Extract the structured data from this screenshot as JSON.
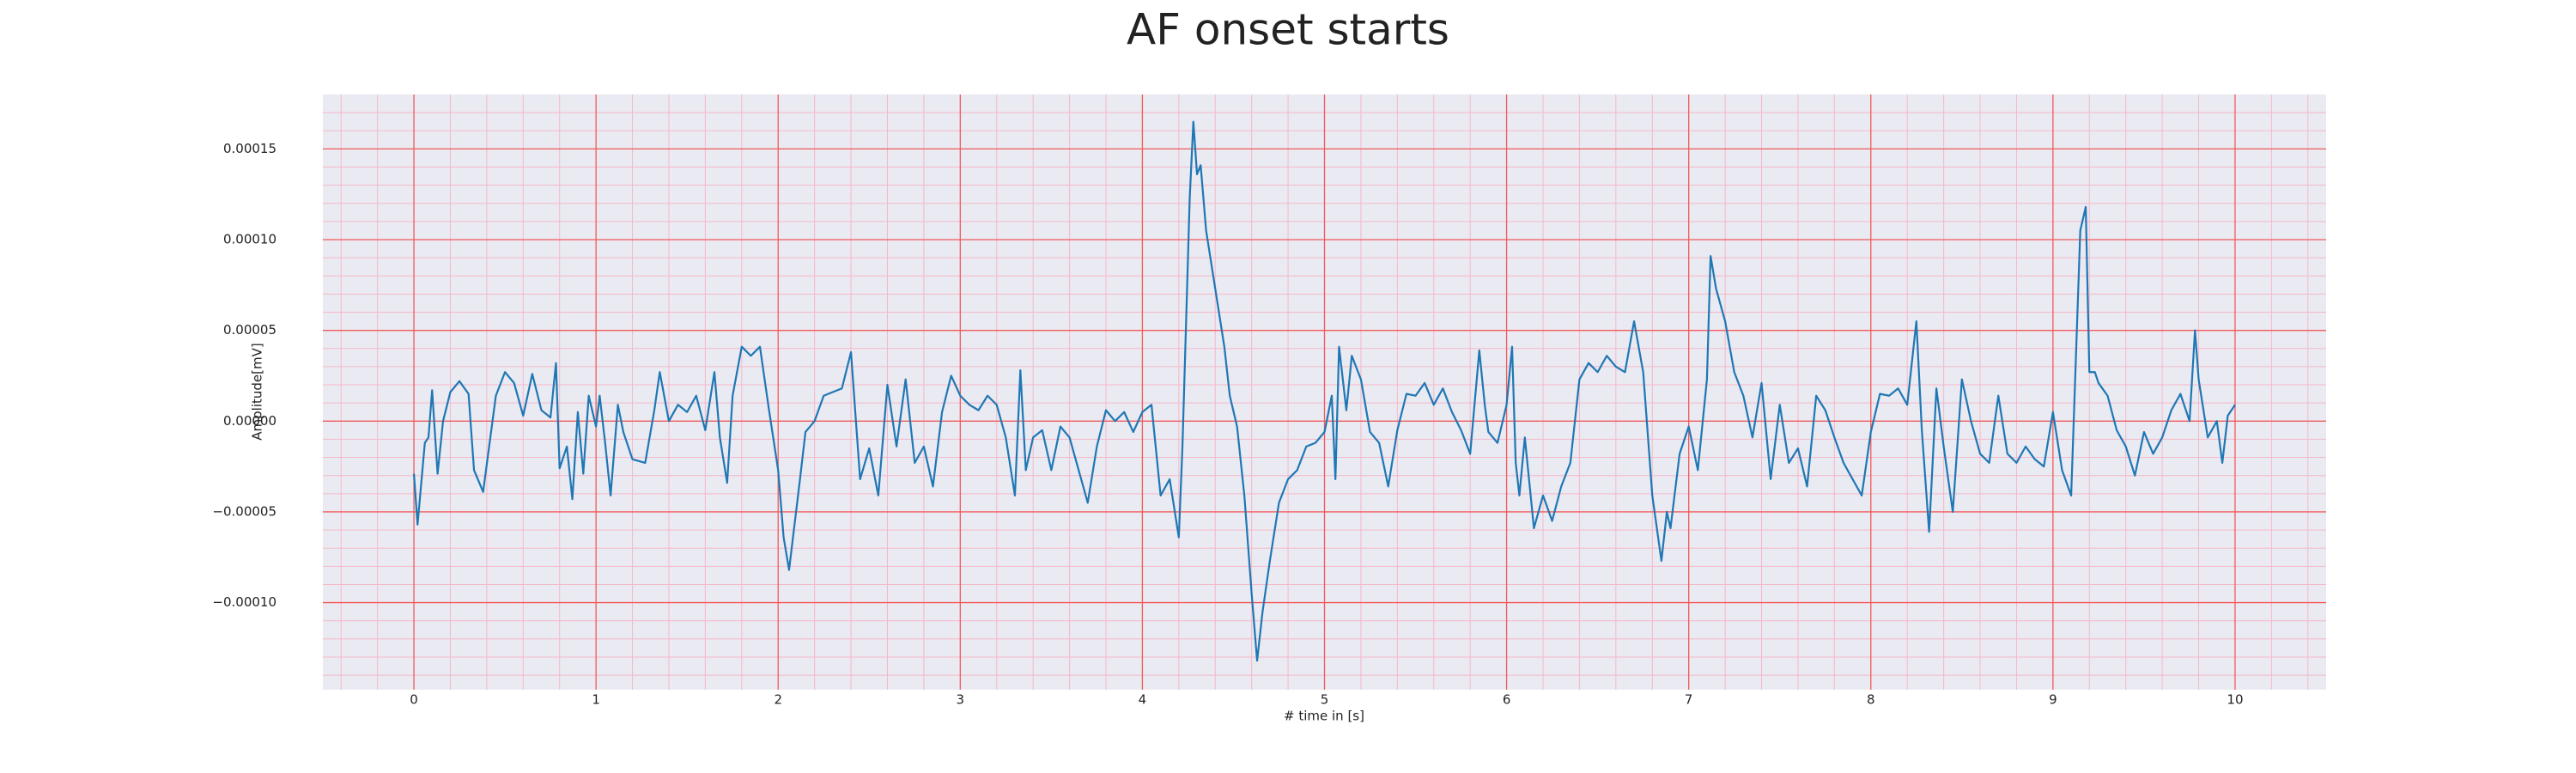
{
  "chart_data": {
    "type": "line",
    "title": "AF onset starts",
    "xlabel": "# time in [s]",
    "ylabel": "Amplitude[mV]",
    "x": [
      0,
      0.02,
      0.06,
      0.08,
      0.1,
      0.13,
      0.16,
      0.2,
      0.25,
      0.3,
      0.33,
      0.38,
      0.45,
      0.5,
      0.55,
      0.6,
      0.65,
      0.7,
      0.75,
      0.78,
      0.8,
      0.84,
      0.87,
      0.9,
      0.93,
      0.96,
      1.0,
      1.02,
      1.05,
      1.08,
      1.12,
      1.15,
      1.2,
      1.27,
      1.32,
      1.35,
      1.4,
      1.45,
      1.5,
      1.55,
      1.6,
      1.65,
      1.68,
      1.72,
      1.75,
      1.8,
      1.85,
      1.9,
      1.95,
      2.0,
      2.03,
      2.06,
      2.12,
      2.15,
      2.2,
      2.25,
      2.3,
      2.35,
      2.4,
      2.45,
      2.5,
      2.55,
      2.6,
      2.65,
      2.7,
      2.75,
      2.8,
      2.85,
      2.9,
      2.95,
      3.0,
      3.05,
      3.1,
      3.15,
      3.2,
      3.25,
      3.3,
      3.33,
      3.36,
      3.4,
      3.45,
      3.5,
      3.55,
      3.6,
      3.65,
      3.7,
      3.75,
      3.8,
      3.85,
      3.9,
      3.95,
      4.0,
      4.05,
      4.1,
      4.15,
      4.2,
      4.22,
      4.26,
      4.28,
      4.3,
      4.32,
      4.35,
      4.4,
      4.45,
      4.48,
      4.52,
      4.56,
      4.6,
      4.63,
      4.66,
      4.7,
      4.75,
      4.8,
      4.85,
      4.9,
      4.95,
      5.0,
      5.04,
      5.06,
      5.08,
      5.12,
      5.15,
      5.2,
      5.25,
      5.3,
      5.35,
      5.4,
      5.45,
      5.5,
      5.55,
      5.6,
      5.65,
      5.7,
      5.75,
      5.8,
      5.85,
      5.88,
      5.9,
      5.95,
      6.0,
      6.03,
      6.05,
      6.07,
      6.1,
      6.15,
      6.2,
      6.25,
      6.3,
      6.35,
      6.4,
      6.45,
      6.5,
      6.55,
      6.6,
      6.65,
      6.7,
      6.75,
      6.8,
      6.85,
      6.88,
      6.9,
      6.95,
      7.0,
      7.05,
      7.1,
      7.12,
      7.15,
      7.2,
      7.25,
      7.3,
      7.35,
      7.4,
      7.45,
      7.5,
      7.55,
      7.6,
      7.65,
      7.7,
      7.75,
      7.8,
      7.85,
      7.9,
      7.95,
      8.0,
      8.05,
      8.1,
      8.15,
      8.2,
      8.25,
      8.28,
      8.32,
      8.36,
      8.4,
      8.45,
      8.5,
      8.55,
      8.6,
      8.65,
      8.7,
      8.75,
      8.8,
      8.85,
      8.9,
      8.95,
      9.0,
      9.05,
      9.1,
      9.15,
      9.18,
      9.2,
      9.23,
      9.25,
      9.3,
      9.35,
      9.4,
      9.45,
      9.5,
      9.55,
      9.6,
      9.65,
      9.7,
      9.75,
      9.78,
      9.8,
      9.85,
      9.9,
      9.93,
      9.96,
      10.0
    ],
    "series": [
      {
        "color": "#1f77b4",
        "values": [
          -2.9e-05,
          -5.7e-05,
          -1.2e-05,
          -9e-06,
          1.7e-05,
          -2.9e-05,
          0,
          1.6e-05,
          2.2e-05,
          1.5e-05,
          -2.7e-05,
          -3.9e-05,
          1.4e-05,
          2.7e-05,
          2.1e-05,
          3e-06,
          2.6e-05,
          6e-06,
          2e-06,
          3.2e-05,
          -2.6e-05,
          -1.4e-05,
          -4.3e-05,
          5e-06,
          -2.9e-05,
          1.4e-05,
          -3e-06,
          1.4e-05,
          -1.2e-05,
          -4.1e-05,
          9e-06,
          -6e-06,
          -2.1e-05,
          -2.3e-05,
          6e-06,
          2.7e-05,
          0,
          9e-06,
          5e-06,
          1.4e-05,
          -5e-06,
          2.7e-05,
          -9e-06,
          -3.4e-05,
          1.4e-05,
          4.1e-05,
          3.6e-05,
          4.1e-05,
          6e-06,
          -2.7e-05,
          -6.4e-05,
          -8.2e-05,
          -3.2e-05,
          -6e-06,
          0,
          1.4e-05,
          1.6e-05,
          1.8e-05,
          3.8e-05,
          -3.2e-05,
          -1.5e-05,
          -4.1e-05,
          2e-05,
          -1.4e-05,
          2.3e-05,
          -2.3e-05,
          -1.4e-05,
          -3.6e-05,
          5e-06,
          2.5e-05,
          1.4e-05,
          9e-06,
          6e-06,
          1.4e-05,
          9e-06,
          -9e-06,
          -4.1e-05,
          2.8e-05,
          -2.7e-05,
          -9e-06,
          -5e-06,
          -2.7e-05,
          -3e-06,
          -9e-06,
          -2.7e-05,
          -4.5e-05,
          -1.4e-05,
          6e-06,
          0,
          5e-06,
          -6e-06,
          5e-06,
          9e-06,
          -4.1e-05,
          -3.2e-05,
          -6.4e-05,
          -1.4e-05,
          0.000123,
          0.000165,
          0.000136,
          0.000141,
          0.000105,
          7.3e-05,
          4.1e-05,
          1.4e-05,
          -3e-06,
          -4.1e-05,
          -9.5e-05,
          -0.000132,
          -0.000105,
          -7.7e-05,
          -4.5e-05,
          -3.2e-05,
          -2.7e-05,
          -1.4e-05,
          -1.2e-05,
          -6e-06,
          1.4e-05,
          -3.2e-05,
          4.1e-05,
          6e-06,
          3.6e-05,
          2.3e-05,
          -6e-06,
          -1.2e-05,
          -3.6e-05,
          -5e-06,
          1.5e-05,
          1.4e-05,
          2.1e-05,
          9e-06,
          1.8e-05,
          5e-06,
          -5e-06,
          -1.8e-05,
          3.9e-05,
          9e-06,
          -6e-06,
          -1.2e-05,
          9e-06,
          4.1e-05,
          -2.3e-05,
          -4.1e-05,
          -9e-06,
          -5.9e-05,
          -4.1e-05,
          -5.5e-05,
          -3.6e-05,
          -2.3e-05,
          2.3e-05,
          3.2e-05,
          2.7e-05,
          3.6e-05,
          3e-05,
          2.7e-05,
          5.5e-05,
          2.7e-05,
          -4.1e-05,
          -7.7e-05,
          -5e-05,
          -5.9e-05,
          -1.8e-05,
          -3e-06,
          -2.7e-05,
          2.3e-05,
          9.1e-05,
          7.3e-05,
          5.5e-05,
          2.7e-05,
          1.4e-05,
          -9e-06,
          2.1e-05,
          -3.2e-05,
          9e-06,
          -2.3e-05,
          -1.5e-05,
          -3.6e-05,
          1.4e-05,
          6e-06,
          -9e-06,
          -2.3e-05,
          -3.2e-05,
          -4.1e-05,
          -6e-06,
          1.5e-05,
          1.4e-05,
          1.8e-05,
          9e-06,
          5.5e-05,
          -5e-06,
          -6.1e-05,
          1.8e-05,
          -1.4e-05,
          -5e-05,
          2.3e-05,
          0,
          -1.8e-05,
          -2.3e-05,
          1.4e-05,
          -1.8e-05,
          -2.3e-05,
          -1.4e-05,
          -2.1e-05,
          -2.5e-05,
          5e-06,
          -2.7e-05,
          -4.1e-05,
          0.000105,
          0.000118,
          2.7e-05,
          2.7e-05,
          2.1e-05,
          1.4e-05,
          -5e-06,
          -1.4e-05,
          -3e-05,
          -6e-06,
          -1.8e-05,
          -9e-06,
          6e-06,
          1.5e-05,
          0,
          5e-05,
          2.3e-05,
          -9e-06,
          0,
          -2.3e-05,
          3e-06,
          9e-06
        ]
      }
    ],
    "xlim": [
      -0.5,
      10.5
    ],
    "xticks": [
      0,
      1,
      2,
      3,
      4,
      5,
      6,
      7,
      8,
      9,
      10
    ],
    "ylim": [
      -0.000148,
      0.00018
    ],
    "yticks": [
      {
        "value": -0.0001,
        "label": "−0.00010"
      },
      {
        "value": -5e-05,
        "label": "−0.00005"
      },
      {
        "value": 0,
        "label": "0.00000"
      },
      {
        "value": 5e-05,
        "label": "0.00005"
      },
      {
        "value": 0.0001,
        "label": "0.00010"
      },
      {
        "value": 0.00015,
        "label": "0.00015"
      }
    ],
    "grid": true,
    "grid_color": "#f25a5a",
    "minor_grid": 5,
    "minor_grid_color": "#f5b8c8",
    "background": "#eaeaf2"
  }
}
